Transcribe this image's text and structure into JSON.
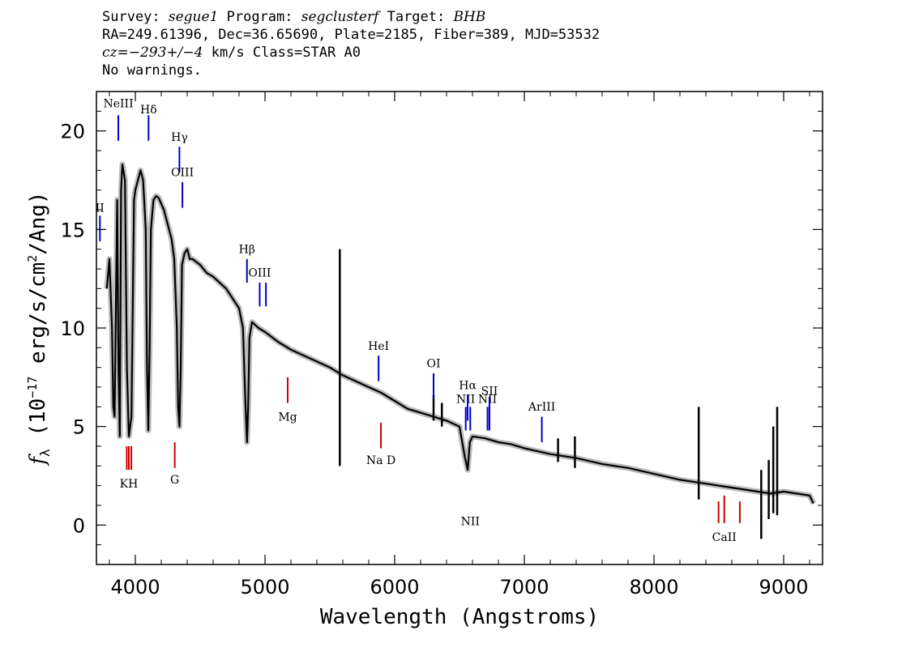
{
  "header": {
    "line1": {
      "survey_label": "Survey: ",
      "survey": "segue1",
      "program_label": " Program: ",
      "program": "segclusterf",
      "target_label": " Target: ",
      "target": "BHB"
    },
    "line2": "RA=249.61396, Dec=36.65690, Plate=2185, Fiber=389, MJD=53532",
    "line3": {
      "cz_label": "cz=",
      "cz": "−293+/−4",
      "rest": " km/s Class=STAR A0"
    },
    "line4": "No warnings."
  },
  "chart_data": {
    "type": "line",
    "xlabel": "Wavelength (Angstroms)",
    "ylabel_prefix": "f",
    "ylabel_sub": "λ",
    "ylabel_main": " (10",
    "ylabel_exp": "−17",
    "ylabel_rest": " erg/s/cm",
    "ylabel_exp2": "2",
    "ylabel_end": "/Ang)",
    "xlim": [
      3700,
      9300
    ],
    "ylim": [
      -2,
      22
    ],
    "x_ticks": [
      4000,
      5000,
      6000,
      7000,
      8000,
      9000
    ],
    "y_ticks": [
      0,
      5,
      10,
      15,
      20
    ],
    "series": [
      {
        "color": "#000000",
        "x": [
          3780,
          3800,
          3820,
          3830,
          3840,
          3860,
          3870,
          3880,
          3890,
          3900,
          3920,
          3935,
          3950,
          3970,
          3990,
          4000,
          4020,
          4040,
          4060,
          4080,
          4090,
          4100,
          4110,
          4120,
          4140,
          4160,
          4180,
          4200,
          4220,
          4240,
          4260,
          4280,
          4300,
          4320,
          4330,
          4340,
          4350,
          4360,
          4380,
          4400,
          4420,
          4440,
          4500,
          4550,
          4600,
          4650,
          4700,
          4750,
          4800,
          4830,
          4850,
          4861,
          4870,
          4880,
          4900,
          4950,
          5000,
          5100,
          5200,
          5300,
          5400,
          5500,
          5600,
          5700,
          5800,
          5900,
          6000,
          6100,
          6200,
          6300,
          6400,
          6500,
          6540,
          6563,
          6580,
          6600,
          6700,
          6800,
          6900,
          7000,
          7200,
          7400,
          7600,
          7800,
          8000,
          8200,
          8400,
          8500,
          8600,
          8700,
          8800,
          8900,
          9000,
          9100,
          9200,
          9230
        ],
        "y": [
          12,
          13.5,
          10,
          6,
          5.5,
          16.5,
          8,
          4.5,
          17,
          18.3,
          17.5,
          8,
          4.5,
          5.5,
          16.5,
          17,
          17.5,
          18,
          17.5,
          15,
          8,
          4.8,
          9,
          15,
          16.5,
          16.7,
          16.6,
          16.3,
          16,
          15.5,
          15,
          14.5,
          13.5,
          10,
          6,
          5,
          8,
          13.2,
          13.8,
          14,
          13.5,
          13.5,
          13.2,
          12.8,
          12.6,
          12.3,
          12,
          11.5,
          11,
          10,
          6,
          4.2,
          6,
          9.5,
          10.3,
          10,
          9.8,
          9.3,
          8.9,
          8.6,
          8.3,
          8,
          7.6,
          7.3,
          7,
          6.7,
          6.3,
          5.9,
          5.7,
          5.5,
          5.3,
          5,
          3.5,
          2.8,
          4.2,
          4.5,
          4.4,
          4.2,
          4.1,
          3.9,
          3.6,
          3.4,
          3.1,
          2.9,
          2.6,
          2.3,
          2.1,
          2,
          1.9,
          1.8,
          1.7,
          1.6,
          1.7,
          1.6,
          1.5,
          1.1
        ]
      }
    ],
    "spikes": [
      {
        "x": 5577,
        "y1": 3,
        "y2": 14
      },
      {
        "x": 6300,
        "y1": 5.3,
        "y2": 6.6
      },
      {
        "x": 6364,
        "y1": 5.0,
        "y2": 6.2
      },
      {
        "x": 8345,
        "y1": 1.3,
        "y2": 6
      },
      {
        "x": 8827,
        "y1": -0.7,
        "y2": 2.8
      },
      {
        "x": 8920,
        "y1": 0.6,
        "y2": 5
      },
      {
        "x": 8950,
        "y1": 0.5,
        "y2": 6
      },
      {
        "x": 8885,
        "y1": 0.3,
        "y2": 3.3
      },
      {
        "x": 7390,
        "y1": 2.9,
        "y2": 4.5
      },
      {
        "x": 7260,
        "y1": 3.2,
        "y2": 4.4
      }
    ],
    "lines": [
      {
        "label": "NeIII",
        "x": 3869,
        "color": "#0000cc",
        "y1": 19.5,
        "y2": 20.8,
        "label_y": 21.2,
        "below": false
      },
      {
        "label": "Hδ",
        "x": 4102,
        "color": "#0000cc",
        "y1": 19.5,
        "y2": 20.8,
        "label_y": 20.9,
        "below": false
      },
      {
        "label": "Hγ",
        "x": 4340,
        "color": "#0000cc",
        "y1": 17.9,
        "y2": 19.2,
        "label_y": 19.5,
        "below": false
      },
      {
        "label": "OIII",
        "x": 4363,
        "color": "#0000cc",
        "y1": 16.1,
        "y2": 17.4,
        "label_y": 17.7,
        "below": false
      },
      {
        "label": "II",
        "x": 3727,
        "color": "#0000cc",
        "y1": 14.4,
        "y2": 15.7,
        "label_y": 15.9,
        "below": false
      },
      {
        "label": "Hβ",
        "x": 4861,
        "color": "#0000cc",
        "y1": 12.3,
        "y2": 13.5,
        "label_y": 13.8,
        "below": false
      },
      {
        "label": "OIII",
        "x": 4959,
        "color": "#0000cc",
        "y1": 11.1,
        "y2": 12.3,
        "label_y": 12.6,
        "below": false
      },
      {
        "label": "",
        "x": 5007,
        "color": "#0000cc",
        "y1": 11.1,
        "y2": 12.3,
        "label_y": 0,
        "below": false
      },
      {
        "label": "HeI",
        "x": 5876,
        "color": "#0000cc",
        "y1": 7.3,
        "y2": 8.6,
        "label_y": 8.9,
        "below": false
      },
      {
        "label": "OI",
        "x": 6300,
        "color": "#0000cc",
        "y1": 6.4,
        "y2": 7.7,
        "label_y": 8.0,
        "below": false
      },
      {
        "label": "NII",
        "x": 6548,
        "color": "#0000cc",
        "y1": 4.8,
        "y2": 6.0,
        "label_y": 6.2,
        "below": false
      },
      {
        "label": "Hα",
        "x": 6563,
        "color": "#0000cc",
        "y1": 5.3,
        "y2": 6.6,
        "label_y": 6.9,
        "below": false
      },
      {
        "label": "NII",
        "x": 6583,
        "color": "#0000cc",
        "y1": 4.8,
        "y2": 6.0,
        "label_y": 0,
        "below": false
      },
      {
        "label": "NII",
        "x": 6716,
        "color": "#0000cc",
        "y1": 4.8,
        "y2": 6.0,
        "label_y": 6.2,
        "below": false
      },
      {
        "label": "SII",
        "x": 6731,
        "color": "#0000cc",
        "y1": 4.8,
        "y2": 6.5,
        "label_y": 6.6,
        "below": false
      },
      {
        "label": "ArIII",
        "x": 7135,
        "color": "#0000cc",
        "y1": 4.2,
        "y2": 5.5,
        "label_y": 5.8,
        "below": false
      },
      {
        "label": "KH",
        "x": 3950,
        "color": "#cc0000",
        "y1": 2.8,
        "y2": 4.0,
        "label_y": 1.9,
        "below": true
      },
      {
        "label": "",
        "x": 3934,
        "color": "#cc0000",
        "y1": 2.8,
        "y2": 4.0,
        "label_y": 0,
        "below": true
      },
      {
        "label": "",
        "x": 3969,
        "color": "#cc0000",
        "y1": 2.8,
        "y2": 4.0,
        "label_y": 0,
        "below": true
      },
      {
        "label": "G",
        "x": 4304,
        "color": "#cc0000",
        "y1": 2.9,
        "y2": 4.2,
        "label_y": 2.1,
        "below": true
      },
      {
        "label": "Mg",
        "x": 5175,
        "color": "#cc0000",
        "y1": 6.2,
        "y2": 7.5,
        "label_y": 5.3,
        "below": true
      },
      {
        "label": "Na  D",
        "x": 5894,
        "color": "#cc0000",
        "y1": 3.9,
        "y2": 5.2,
        "label_y": 3.1,
        "below": true
      },
      {
        "label": "CaII",
        "x": 8542,
        "color": "#cc0000",
        "y1": 0.1,
        "y2": 1.5,
        "label_y": -0.8,
        "below": true
      },
      {
        "label": "",
        "x": 8498,
        "color": "#cc0000",
        "y1": 0.1,
        "y2": 1.2,
        "label_y": 0,
        "below": true
      },
      {
        "label": "",
        "x": 8662,
        "color": "#cc0000",
        "y1": 0.1,
        "y2": 1.2,
        "label_y": 0,
        "below": true
      }
    ],
    "grid": false,
    "legend": "none"
  }
}
